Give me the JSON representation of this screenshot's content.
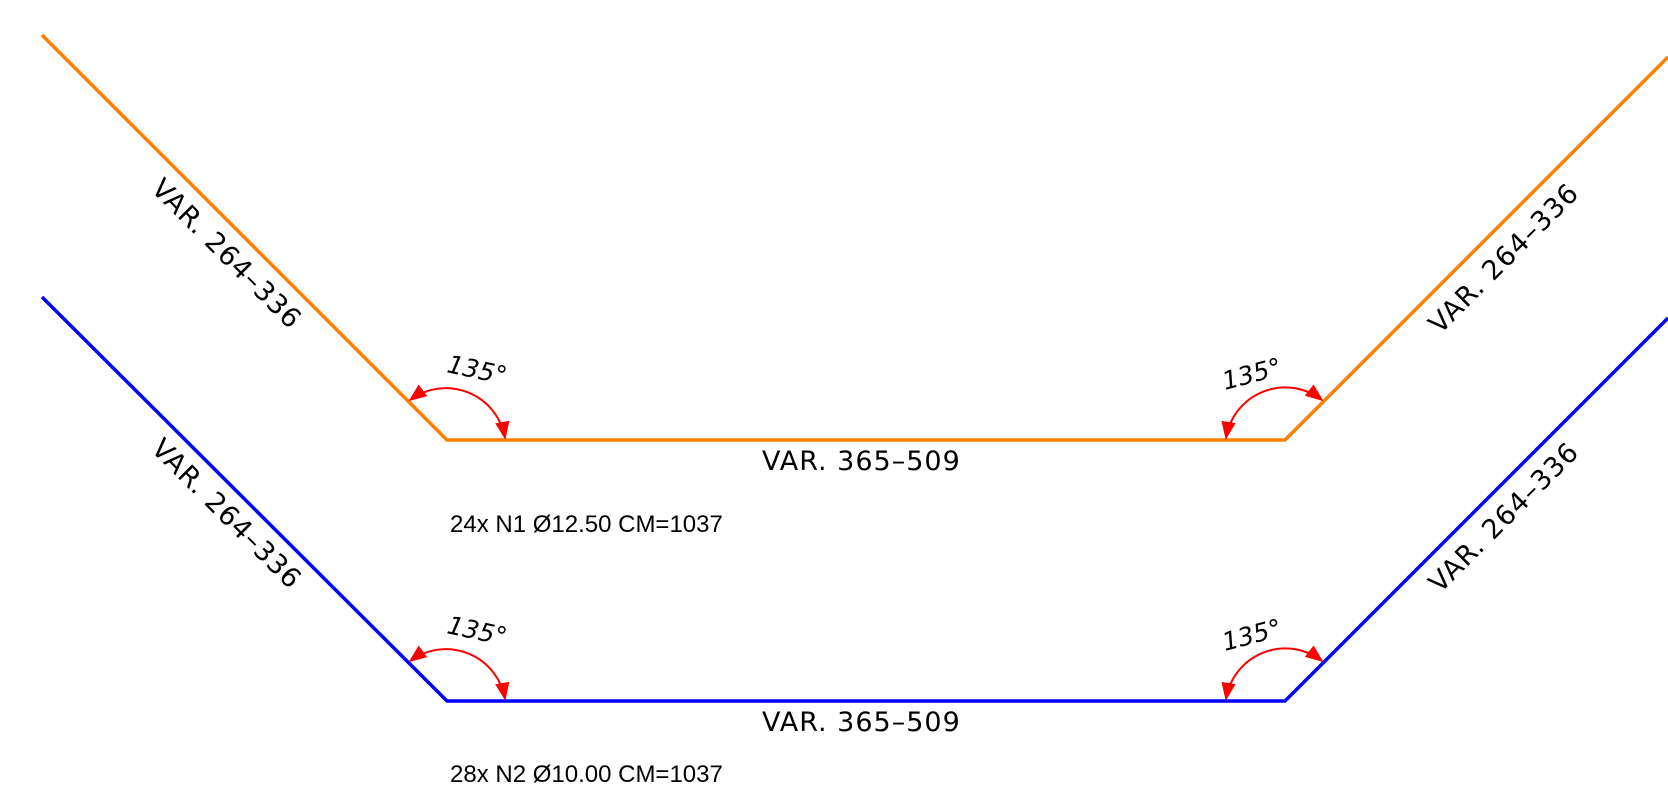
{
  "bars": [
    {
      "color": "#ff8000",
      "left_leg": "VAR. 264–336",
      "right_leg": "VAR. 264–336",
      "base": "VAR. 365–509",
      "left_angle": "135°",
      "right_angle": "135°",
      "spec": "24x N1 Ø12.50 CM=1037"
    },
    {
      "color": "#0000ff",
      "left_leg": "VAR. 264–336",
      "right_leg": "VAR. 264–336",
      "base": "VAR. 365–509",
      "left_angle": "135°",
      "right_angle": "135°",
      "spec": "28x N2 Ø10.00 CM=1037"
    }
  ],
  "dimension_color": "#ff0000"
}
